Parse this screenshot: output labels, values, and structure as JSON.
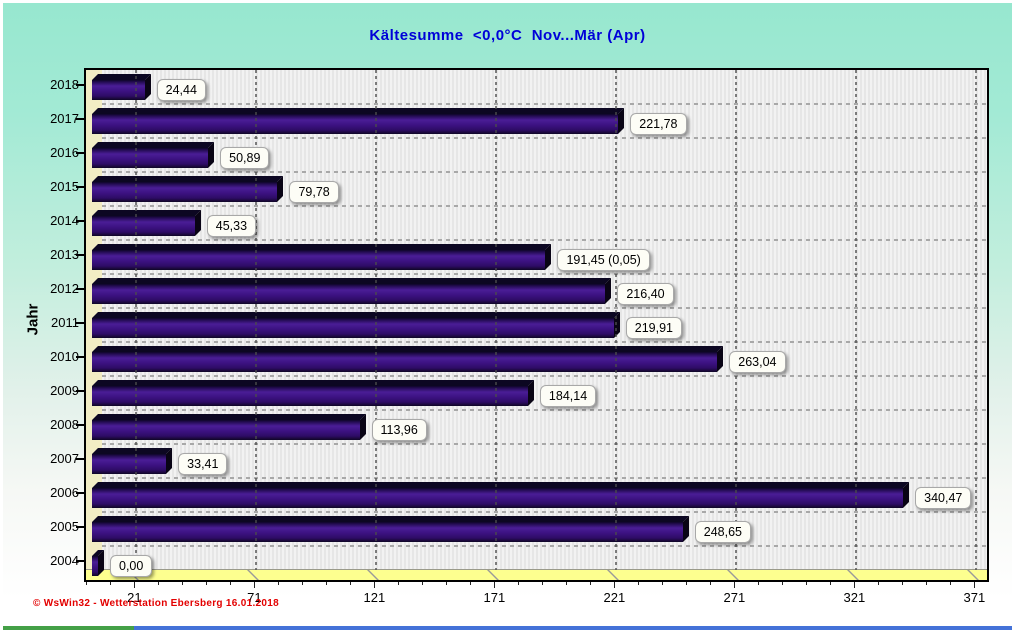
{
  "title": "Kältesumme  <0,0°C  Nov...Mär (Apr)",
  "y_axis_label": "Jahr",
  "footer": "© WsWin32 - Wetterstation Ebersberg  16.01.2018",
  "colors": {
    "title_blue": "#0000d8",
    "bar_purple": "#3a1080",
    "plot_background": "#ebebeb",
    "wall_cream": "#f2edc4",
    "floor_yellow": "#fdff8f",
    "footer_red": "#e30000",
    "background_mint": "#97e7cf",
    "statusbar_green": "#44a047",
    "statusbar_blue": "#4472d8"
  },
  "chart_data": {
    "type": "bar",
    "orientation": "horizontal",
    "title": "Kältesumme  <0,0°C  Nov...Mär (Apr)",
    "xlabel": "",
    "ylabel": "Jahr",
    "categories": [
      "2018",
      "2017",
      "2016",
      "2015",
      "2014",
      "2013",
      "2012",
      "2011",
      "2010",
      "2009",
      "2008",
      "2007",
      "2006",
      "2005",
      "2004"
    ],
    "values": [
      24.44,
      221.78,
      50.89,
      79.78,
      45.33,
      191.45,
      216.4,
      219.91,
      263.04,
      184.14,
      113.96,
      33.41,
      340.47,
      248.65,
      0.0
    ],
    "value_labels": [
      "24,44",
      "221,78",
      "50,89",
      "79,78",
      "45,33",
      "191,45 (0,05)",
      "216,40",
      "219,91",
      "263,04",
      "184,14",
      "113,96",
      "33,41",
      "340,47",
      "248,65",
      "0,00"
    ],
    "x_ticks": [
      21,
      71,
      121,
      171,
      221,
      271,
      321,
      371
    ],
    "x_minor_tick_step": 10,
    "xlim": [
      0,
      375
    ],
    "grid": "dashed",
    "legend_position": "none"
  }
}
